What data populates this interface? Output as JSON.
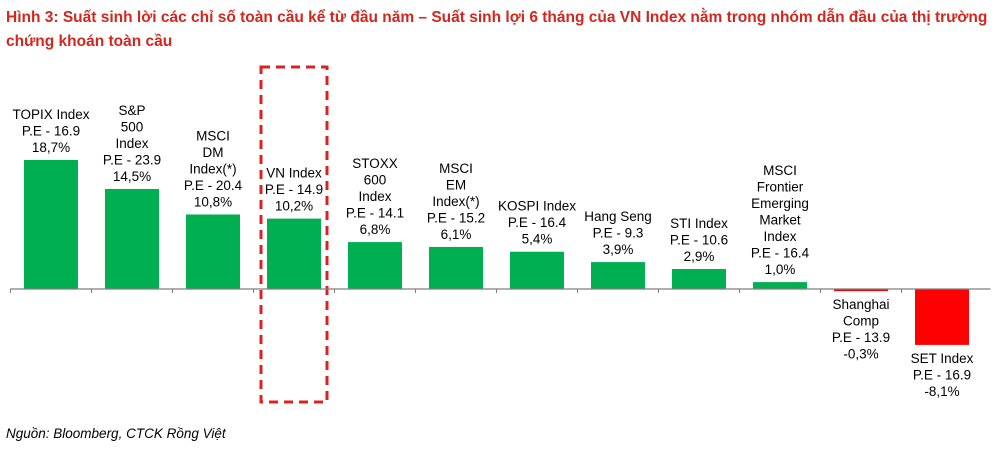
{
  "title": "Hình 3: Suất sinh lời các chỉ số toàn cầu kể từ đầu năm – Suất sinh lợi 6 tháng của  VN Index nằm trong nhóm dẫn đầu của thị trường chứng khoán toàn cầu",
  "source": "Nguồn: Bloomberg, CTCK Rồng Việt",
  "colors": {
    "positive": "#00b050",
    "negative": "#ff0000",
    "highlight_border": "#e02020",
    "title": "#d2261e"
  },
  "chart_data": {
    "type": "bar",
    "categories": [
      "TOPIX Index",
      "S&P 500 Index",
      "MSCI DM Index(*)",
      "VN Index",
      "STOXX 600 Index",
      "MSCI EM Index(*)",
      "KOSPI Index",
      "Hang Seng",
      "STI Index",
      "MSCI Frontier Emerging Market Index",
      "Shanghai Comp",
      "SET Index"
    ],
    "values": [
      18.7,
      14.5,
      10.8,
      10.2,
      6.8,
      6.1,
      5.4,
      3.9,
      2.9,
      1.0,
      -0.3,
      -8.1
    ],
    "unit": "%",
    "highlighted": "VN Index",
    "labels": [
      [
        "TOPIX Index",
        "P.E - 16.9",
        "18,7%"
      ],
      [
        "S&P",
        "500",
        "Index",
        "P.E - 23.9",
        "14,5%"
      ],
      [
        "MSCI",
        "DM",
        "Index(*)",
        "P.E - 20.4",
        "10,8%"
      ],
      [
        "VN Index",
        "P.E - 14.9",
        "10,2%"
      ],
      [
        "STOXX",
        "600",
        "Index",
        "P.E - 14.1",
        "6,8%"
      ],
      [
        "MSCI",
        "EM",
        "Index(*)",
        "P.E - 15.2",
        "6,1%"
      ],
      [
        "KOSPI Index",
        "P.E - 16.4",
        "5,4%"
      ],
      [
        "Hang Seng",
        "P.E - 9.3",
        "3,9%"
      ],
      [
        "STI Index",
        "P.E - 10.6",
        "2,9%"
      ],
      [
        "MSCI",
        "Frontier",
        "Emerging",
        "Market",
        "Index",
        "P.E - 16.4",
        "1,0%"
      ],
      [
        "Shanghai",
        "Comp",
        "P.E - 13.9",
        "-0,3%"
      ],
      [
        "SET Index",
        "P.E - 16.9",
        "-8,1%"
      ]
    ]
  }
}
